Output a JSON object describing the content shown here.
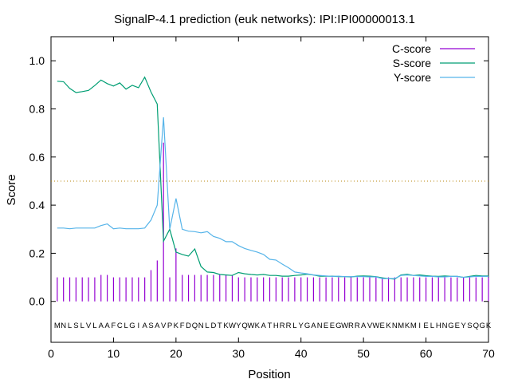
{
  "chart_data": {
    "type": "line",
    "title": "SignalP-4.1 prediction (euk networks): IPI:IPI00000013.1",
    "xlabel": "Position",
    "ylabel": "Score",
    "xlim": [
      0,
      70
    ],
    "ylim": [
      -0.17,
      1.1
    ],
    "x_ticks": [
      0,
      10,
      20,
      30,
      40,
      50,
      60,
      70
    ],
    "y_ticks": [
      0.0,
      0.2,
      0.4,
      0.6,
      0.8,
      1.0
    ],
    "x_tick_labels": [
      "0",
      "10",
      "20",
      "30",
      "40",
      "50",
      "60",
      "70"
    ],
    "y_tick_labels": [
      "0.0",
      "0.2",
      "0.4",
      "0.6",
      "0.8",
      "1.0"
    ],
    "threshold": 0.5,
    "sequence": "MNLSLVLAAFCLGIASAVPKFDQNLDTKWYQWKATHRRLYGANEEGWRRAVWEKNMKMIELHNGEYSQGK",
    "legend_position": "top-right",
    "series": [
      {
        "name": "C-score",
        "style": "impulses",
        "color": "#9400d3",
        "values": [
          0.1,
          0.1,
          0.1,
          0.1,
          0.1,
          0.1,
          0.1,
          0.11,
          0.11,
          0.1,
          0.1,
          0.1,
          0.1,
          0.1,
          0.1,
          0.13,
          0.17,
          0.66,
          0.1,
          0.22,
          0.11,
          0.11,
          0.11,
          0.11,
          0.11,
          0.11,
          0.11,
          0.11,
          0.11,
          0.1,
          0.1,
          0.1,
          0.1,
          0.1,
          0.1,
          0.1,
          0.1,
          0.1,
          0.1,
          0.1,
          0.1,
          0.1,
          0.1,
          0.1,
          0.1,
          0.1,
          0.1,
          0.1,
          0.1,
          0.1,
          0.1,
          0.1,
          0.1,
          0.1,
          0.1,
          0.1,
          0.1,
          0.1,
          0.1,
          0.1,
          0.1,
          0.1,
          0.1,
          0.1,
          0.1,
          0.1,
          0.1,
          0.1,
          0.1,
          0.1
        ]
      },
      {
        "name": "S-score",
        "style": "line",
        "color": "#009e73",
        "values": [
          0.915,
          0.913,
          0.885,
          0.868,
          0.872,
          0.877,
          0.897,
          0.92,
          0.905,
          0.895,
          0.908,
          0.882,
          0.898,
          0.888,
          0.932,
          0.87,
          0.82,
          0.25,
          0.3,
          0.205,
          0.195,
          0.188,
          0.218,
          0.145,
          0.122,
          0.12,
          0.112,
          0.11,
          0.108,
          0.12,
          0.115,
          0.112,
          0.11,
          0.112,
          0.108,
          0.108,
          0.105,
          0.105,
          0.108,
          0.11,
          0.113,
          0.11,
          0.105,
          0.105,
          0.105,
          0.103,
          0.103,
          0.102,
          0.105,
          0.106,
          0.105,
          0.103,
          0.098,
          0.095,
          0.093,
          0.11,
          0.113,
          0.108,
          0.11,
          0.107,
          0.105,
          0.104,
          0.106,
          0.104,
          0.104,
          0.1,
          0.104,
          0.108,
          0.106,
          0.106
        ]
      },
      {
        "name": "Y-score",
        "style": "line",
        "color": "#56b4e9",
        "values": [
          0.305,
          0.305,
          0.302,
          0.305,
          0.305,
          0.305,
          0.305,
          0.315,
          0.322,
          0.302,
          0.305,
          0.302,
          0.302,
          0.302,
          0.305,
          0.338,
          0.4,
          0.765,
          0.3,
          0.428,
          0.3,
          0.292,
          0.29,
          0.285,
          0.29,
          0.27,
          0.262,
          0.248,
          0.248,
          0.232,
          0.22,
          0.212,
          0.205,
          0.195,
          0.175,
          0.172,
          0.155,
          0.14,
          0.122,
          0.118,
          0.115,
          0.11,
          0.108,
          0.106,
          0.104,
          0.105,
          0.103,
          0.103,
          0.103,
          0.103,
          0.102,
          0.102,
          0.095,
          0.095,
          0.095,
          0.108,
          0.11,
          0.108,
          0.106,
          0.104,
          0.104,
          0.102,
          0.102,
          0.104,
          0.104,
          0.1,
          0.102,
          0.104,
          0.104,
          0.104
        ]
      }
    ]
  }
}
